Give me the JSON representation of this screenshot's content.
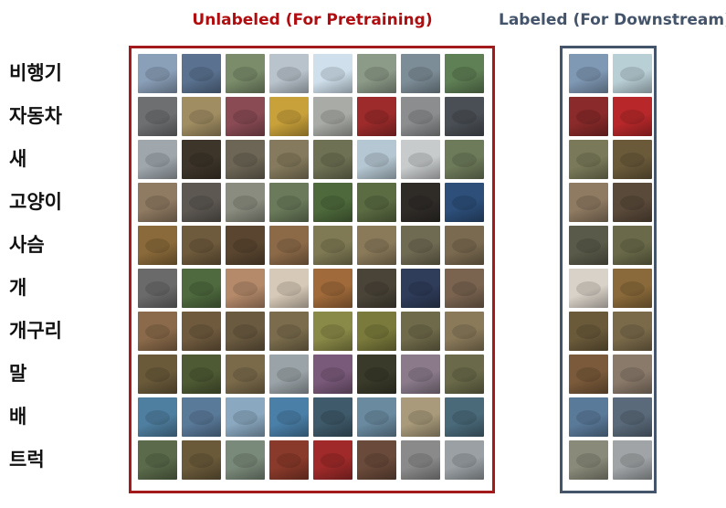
{
  "titles": {
    "unlabeled": "Unlabeled (For Pretraining)",
    "labeled": "Labeled (For Downstream)"
  },
  "classes": [
    "비행기",
    "자동차",
    "새",
    "고양이",
    "사슴",
    "개",
    "개구리",
    "말",
    "배",
    "트럭"
  ],
  "colors": {
    "unlabeled_border": "#a31a1d",
    "unlabeled_title": "#b00d10",
    "labeled_border": "#44546a",
    "labeled_title": "#44546a"
  },
  "unlabeled_rows": [
    [
      "#8a9fb8",
      "#5a7290",
      "#7a8c6a",
      "#b9c3cc",
      "#cfe0ec",
      "#8c9a88",
      "#7d8d97",
      "#5f7f55"
    ],
    [
      "#6d6f71",
      "#a08d62",
      "#8a4b55",
      "#c9a13a",
      "#a9aba6",
      "#9d2b2b",
      "#8b8d8e",
      "#4a4f55"
    ],
    [
      "#9fa7ad",
      "#3d352a",
      "#6d6656",
      "#857a5d",
      "#6f7154",
      "#b5c7d2",
      "#c8cbcc",
      "#6e7b5a"
    ],
    [
      "#8f7a62",
      "#5d5852",
      "#8a8c7f",
      "#6a7a5a",
      "#4e6a3c",
      "#5b6b42",
      "#2f2c28",
      "#2d4f7a"
    ],
    [
      "#8a6a3a",
      "#6e5a3c",
      "#5a4630",
      "#8c6a48",
      "#7f7a54",
      "#8a7a5a",
      "#6f6a52",
      "#7a6a50"
    ],
    [
      "#6a6a6a",
      "#4f6a3f",
      "#b58a6a",
      "#d7c9b7",
      "#a06a3a",
      "#4a4438",
      "#2f3c5a",
      "#7a6450"
    ],
    [
      "#8a6a4a",
      "#6f5a3e",
      "#6a5a40",
      "#7a6c4c",
      "#8a8a48",
      "#7a7a3c",
      "#6f6a4a",
      "#8a7a5a"
    ],
    [
      "#6a5a3a",
      "#4e5a34",
      "#7a6a4a",
      "#9aa3a8",
      "#7a5a7a",
      "#3a3a2a",
      "#8a7a8a",
      "#6a6a4a"
    ],
    [
      "#4f7fa0",
      "#5a7a9a",
      "#8aa8c0",
      "#4a7fa8",
      "#3f5a6a",
      "#6a8aa0",
      "#a89a7a",
      "#4a6a7a"
    ],
    [
      "#5a6a4a",
      "#6a5a3a",
      "#7a8a7a",
      "#8a3a2a",
      "#a02a2a",
      "#6a4a3a",
      "#8a8a8a",
      "#9aa0a4"
    ]
  ],
  "labeled_rows": [
    [
      "#7f98b4",
      "#b9cfd6"
    ],
    [
      "#8a2a2a",
      "#b8282a"
    ],
    [
      "#7a7a5a",
      "#6a5a3a"
    ],
    [
      "#8f7a62",
      "#5a4a3a"
    ],
    [
      "#5a5a4a",
      "#6a6a4a"
    ],
    [
      "#d9d2c8",
      "#8a6a3a"
    ],
    [
      "#6a5a3a",
      "#7a6a4a"
    ],
    [
      "#7a5a3a",
      "#8a7a6a"
    ],
    [
      "#5a7a9a",
      "#5a6a7a"
    ],
    [
      "#8a8a7a",
      "#a0a4a6"
    ]
  ]
}
